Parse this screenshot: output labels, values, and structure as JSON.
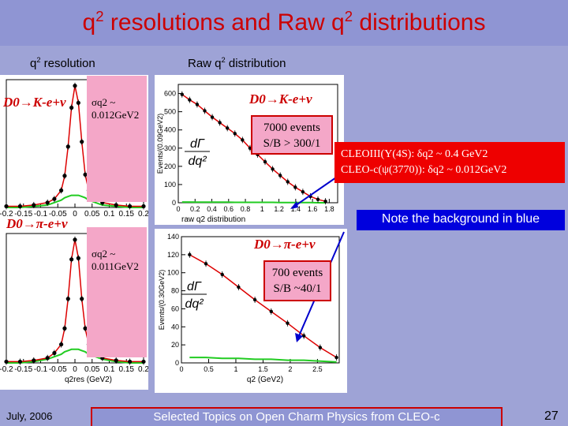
{
  "slide": {
    "title_a": "q",
    "title_sup1": "2",
    "title_b": " resolutions and Raw q",
    "title_sup2": "2",
    "title_c": " distributions"
  },
  "labels": {
    "res_a": "q",
    "res_sup": "2",
    "res_b": " resolution",
    "raw_a": "Raw q",
    "raw_sup": "2",
    "raw_b": " distribution"
  },
  "decays": {
    "kaon": "D0→K-e+ν",
    "pion": "D0→π-e+ν"
  },
  "sigma": {
    "kaon_label": "σq2 ~",
    "kaon_value": "0.012GeV2",
    "pion_label": "σq2 ~",
    "pion_value": "0.011GeV2"
  },
  "events": {
    "kaon_line1": "7000 events",
    "kaon_line2": "S/B > 300/1",
    "pion_line1": "700 events",
    "pion_line2": "S/B ~40/1"
  },
  "cleo": {
    "line1": "CLEOIII(Υ(4S): δq2 ~ 0.4 GeV2",
    "line2": "CLEO-c(ψ(3770)): δq2 ~ 0.012GeV2"
  },
  "note": "Note the background in blue",
  "footer": {
    "date": "July, 2006",
    "center": "Selected Topics on Open Charm Physics from CLEO-c",
    "page": "27"
  },
  "colors": {
    "title": "#cc0000",
    "background": "#9ea3d6",
    "accent_red": "#ee0000",
    "accent_blue": "#0000dd",
    "box_pink": "#f4a7c8",
    "fit_green": "#22cc22",
    "fit_red": "#dd0000"
  },
  "chart_data": [
    {
      "type": "line",
      "id": "kaon-resolution",
      "x_ticks": [
        "-0.2",
        "-0.15",
        "-0.1",
        "-0.05",
        "0",
        "0.05",
        "0.1",
        "0.15",
        "0.2"
      ],
      "xlim": [
        -0.2,
        0.2
      ],
      "x": [
        -0.2,
        -0.16,
        -0.12,
        -0.08,
        -0.06,
        -0.04,
        -0.03,
        -0.02,
        -0.01,
        0,
        0.01,
        0.02,
        0.03,
        0.04,
        0.06,
        0.08,
        0.12,
        0.16,
        0.2
      ],
      "series": [
        {
          "values": [
            0.01,
            0.01,
            0.02,
            0.04,
            0.07,
            0.14,
            0.26,
            0.5,
            0.82,
            1.0,
            0.86,
            0.54,
            0.27,
            0.14,
            0.07,
            0.04,
            0.02,
            0.01,
            0.01
          ]
        },
        {
          "values": [
            0,
            0,
            0.01,
            0.02,
            0.04,
            0.06,
            0.08,
            0.09,
            0.1,
            0.1,
            0.1,
            0.09,
            0.08,
            0.06,
            0.04,
            0.02,
            0.01,
            0,
            0
          ]
        }
      ]
    },
    {
      "type": "line",
      "id": "kaon-raw-q2",
      "x_ticks": [
        "0",
        "0.2",
        "0.4",
        "0.6",
        "0.8",
        "1",
        "1.2",
        "1.4",
        "1.6",
        "1.8"
      ],
      "y_ticks": [
        "0",
        "100",
        "200",
        "300",
        "400",
        "500",
        "600"
      ],
      "ylabel": "Events/(0.09GeV2)",
      "xlabel": "raw q2 distribution",
      "xlim": [
        0,
        1.9
      ],
      "ylim": [
        0,
        650
      ],
      "x": [
        0.045,
        0.135,
        0.225,
        0.315,
        0.405,
        0.495,
        0.585,
        0.675,
        0.765,
        0.855,
        0.945,
        1.035,
        1.125,
        1.215,
        1.305,
        1.395,
        1.485,
        1.575,
        1.665,
        1.755
      ],
      "series": [
        {
          "values": [
            595,
            565,
            540,
            505,
            470,
            440,
            410,
            380,
            345,
            300,
            265,
            225,
            185,
            150,
            115,
            85,
            60,
            35,
            18,
            8
          ]
        },
        {
          "values": [
            4,
            4,
            3,
            3,
            3,
            3,
            3,
            2,
            2,
            2,
            2,
            2,
            2,
            1,
            1,
            1,
            1,
            1,
            0,
            0
          ]
        }
      ]
    },
    {
      "type": "line",
      "id": "pion-resolution",
      "x_ticks": [
        "-0.2",
        "-0.15",
        "-0.1",
        "-0.05",
        "0",
        "0.05",
        "0.1",
        "0.15",
        "0.2"
      ],
      "xlabel": "q2res (GeV2)",
      "xlim": [
        -0.2,
        0.2
      ],
      "x": [
        -0.2,
        -0.16,
        -0.12,
        -0.08,
        -0.06,
        -0.04,
        -0.03,
        -0.02,
        -0.01,
        0,
        0.01,
        0.02,
        0.03,
        0.04,
        0.06,
        0.08,
        0.12,
        0.16,
        0.2
      ],
      "series": [
        {
          "values": [
            0.01,
            0.01,
            0.02,
            0.04,
            0.08,
            0.15,
            0.28,
            0.52,
            0.84,
            1.0,
            0.85,
            0.52,
            0.28,
            0.15,
            0.08,
            0.04,
            0.02,
            0.01,
            0.01
          ]
        },
        {
          "values": [
            0,
            0,
            0.01,
            0.03,
            0.05,
            0.07,
            0.09,
            0.1,
            0.11,
            0.11,
            0.11,
            0.1,
            0.09,
            0.07,
            0.05,
            0.03,
            0.01,
            0,
            0
          ]
        }
      ]
    },
    {
      "type": "line",
      "id": "pion-raw-q2",
      "x_ticks": [
        "0",
        "0.5",
        "1",
        "1.5",
        "2",
        "2.5"
      ],
      "y_ticks": [
        "0",
        "20",
        "40",
        "60",
        "80",
        "100",
        "120",
        "140"
      ],
      "ylabel": "Events/(0.30GeV2)",
      "xlabel": "q2 (GeV2)",
      "xlim": [
        0,
        2.9
      ],
      "ylim": [
        0,
        140
      ],
      "x": [
        0.15,
        0.45,
        0.75,
        1.05,
        1.35,
        1.65,
        1.95,
        2.25,
        2.55,
        2.85
      ],
      "series": [
        {
          "values": [
            120,
            110,
            98,
            84,
            70,
            57,
            44,
            30,
            17,
            6
          ]
        },
        {
          "values": [
            6,
            6,
            5,
            5,
            4,
            4,
            3,
            3,
            2,
            1
          ]
        }
      ]
    }
  ]
}
